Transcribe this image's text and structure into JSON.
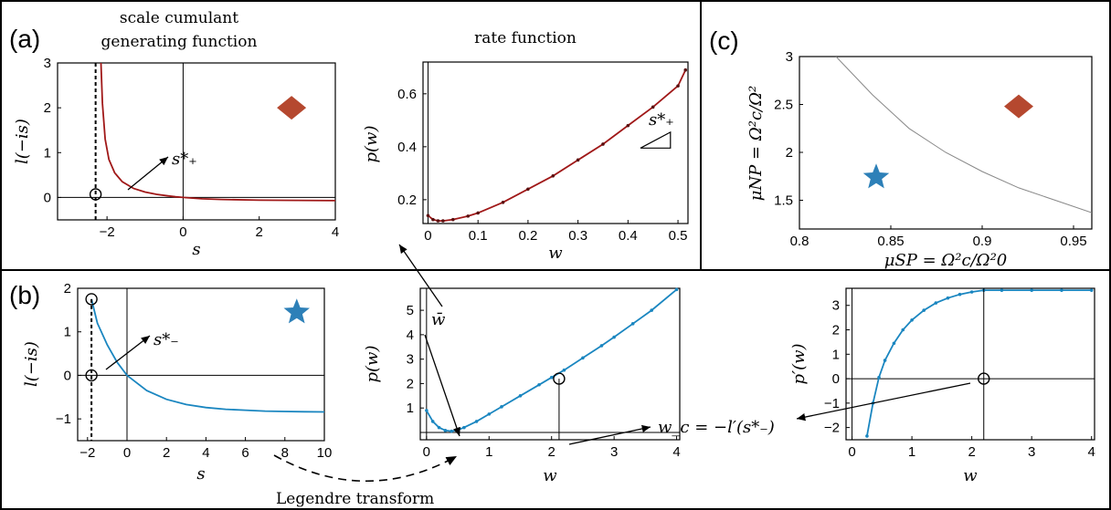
{
  "colors": {
    "red": "#A01818",
    "blue": "#1A86C0",
    "marker_red": "#B5482F",
    "marker_blue": "#2D80B8",
    "boundary": "#888888"
  },
  "panels": {
    "a": {
      "label": "(a)",
      "title_lines": [
        "scale cumulant",
        "generating function"
      ],
      "right_title": "rate function",
      "annotation": "s*₊"
    },
    "b": {
      "label": "(b)",
      "annotation": "s*₋",
      "wbar": "w̄",
      "wc_text": "w_c = −l′(s*₋)",
      "legendre": "Legendre transform"
    },
    "c": {
      "label": "(c)"
    }
  },
  "chart_data": [
    {
      "id": "a_left",
      "type": "line",
      "xlabel": "s",
      "ylabel": "l(−is)",
      "xlim": [
        -3.3,
        4
      ],
      "ylim": [
        -0.5,
        3
      ],
      "xticks": [
        -2,
        0,
        2,
        4
      ],
      "xtick_labels": [
        "−2",
        "0",
        "2",
        "4"
      ],
      "yticks": [
        0,
        1,
        2,
        3
      ],
      "ytick_labels": [
        "0",
        "1",
        "2",
        "3"
      ],
      "series": [
        {
          "color": "red",
          "x": [
            -2.16,
            -2.12,
            -2.05,
            -1.95,
            -1.8,
            -1.6,
            -1.3,
            -1.0,
            -0.7,
            -0.4,
            -0.2,
            0,
            0.5,
            1,
            2,
            3,
            4
          ],
          "y": [
            3.0,
            2.1,
            1.3,
            0.85,
            0.55,
            0.35,
            0.2,
            0.12,
            0.07,
            0.035,
            0.015,
            0,
            -0.03,
            -0.045,
            -0.06,
            -0.065,
            -0.07
          ]
        }
      ],
      "vline_dashed_x": -2.3,
      "circle_point": [
        -2.3,
        0.07
      ],
      "marker": "diamond",
      "marker_at": [
        2.85,
        2.0
      ]
    },
    {
      "id": "a_right",
      "type": "line",
      "xlabel": "w",
      "ylabel": "p(w)",
      "xlim": [
        -0.01,
        0.52
      ],
      "ylim": [
        0.11,
        0.72
      ],
      "xticks": [
        0,
        0.1,
        0.2,
        0.3,
        0.4,
        0.5
      ],
      "xtick_labels": [
        "0",
        "0.1",
        "0.2",
        "0.3",
        "0.4",
        "0.5"
      ],
      "yticks": [
        0.2,
        0.4,
        0.6
      ],
      "ytick_labels": [
        "0.2",
        "0.4",
        "0.6"
      ],
      "series": [
        {
          "color": "red",
          "x": [
            0,
            0.01,
            0.02,
            0.03,
            0.05,
            0.08,
            0.1,
            0.15,
            0.2,
            0.25,
            0.3,
            0.35,
            0.4,
            0.45,
            0.5,
            0.515
          ],
          "y": [
            0.14,
            0.125,
            0.12,
            0.12,
            0.125,
            0.138,
            0.15,
            0.19,
            0.24,
            0.29,
            0.35,
            0.41,
            0.48,
            0.55,
            0.63,
            0.69
          ]
        }
      ],
      "slope_triangle": [
        [
          0.425,
          0.395
        ],
        [
          0.485,
          0.395
        ],
        [
          0.485,
          0.455
        ]
      ]
    },
    {
      "id": "c",
      "type": "line",
      "xlabel": "μSP = Ω²c/Ω²0",
      "ylabel": "μNP = Ω²c/Ω²",
      "xlim": [
        0.8,
        0.96
      ],
      "ylim": [
        1.2,
        3.0
      ],
      "xticks": [
        0.8,
        0.85,
        0.9,
        0.95
      ],
      "xtick_labels": [
        "0.8",
        "0.85",
        "0.9",
        "0.95"
      ],
      "yticks": [
        1.5,
        2,
        2.5,
        3
      ],
      "ytick_labels": [
        "1.5",
        "2",
        "2.5",
        "3"
      ],
      "series": [
        {
          "color": "boundary",
          "x": [
            0.82,
            0.84,
            0.86,
            0.88,
            0.9,
            0.92,
            0.94,
            0.96
          ],
          "y": [
            3.0,
            2.6,
            2.25,
            2.0,
            1.8,
            1.63,
            1.5,
            1.37
          ]
        }
      ],
      "markers": [
        {
          "shape": "diamond",
          "at": [
            0.92,
            2.48
          ]
        },
        {
          "shape": "star",
          "at": [
            0.842,
            1.74
          ]
        }
      ]
    },
    {
      "id": "b_left",
      "type": "line",
      "xlabel": "s",
      "ylabel": "l(−is)",
      "xlim": [
        -2.5,
        10
      ],
      "ylim": [
        -1.5,
        2
      ],
      "xticks": [
        -2,
        0,
        2,
        4,
        6,
        8,
        10
      ],
      "xtick_labels": [
        "−2",
        "0",
        "2",
        "4",
        "6",
        "8",
        "10"
      ],
      "yticks": [
        -1,
        0,
        1,
        2
      ],
      "ytick_labels": [
        "−1",
        "0",
        "1",
        "2"
      ],
      "series": [
        {
          "color": "blue",
          "x": [
            -1.8,
            -1.5,
            -1.0,
            -0.5,
            0,
            1,
            2,
            3,
            4,
            5,
            6,
            7,
            8,
            9,
            10
          ],
          "y": [
            1.75,
            1.2,
            0.7,
            0.3,
            0,
            -0.35,
            -0.55,
            -0.67,
            -0.74,
            -0.78,
            -0.8,
            -0.82,
            -0.83,
            -0.835,
            -0.84
          ]
        }
      ],
      "vline_dashed_x": -1.8,
      "circle_points": [
        [
          -1.8,
          1.75
        ],
        [
          -1.8,
          0
        ]
      ],
      "marker": "star",
      "marker_at": [
        8.6,
        1.45
      ]
    },
    {
      "id": "b_mid",
      "type": "line",
      "xlabel": "w",
      "ylabel": "p(w)",
      "xlim": [
        -0.1,
        4.05
      ],
      "ylim": [
        -0.3,
        5.9
      ],
      "xticks": [
        0,
        1,
        2,
        3,
        4
      ],
      "xtick_labels": [
        "0",
        "1",
        "2",
        "3",
        "4"
      ],
      "yticks": [
        1,
        2,
        3,
        4,
        5
      ],
      "ytick_labels": [
        "1",
        "2",
        "3",
        "4",
        "5"
      ],
      "series": [
        {
          "color": "blue",
          "x": [
            0,
            0.1,
            0.2,
            0.3,
            0.4,
            0.5,
            0.6,
            0.8,
            1.0,
            1.2,
            1.5,
            1.8,
            2.0,
            2.2,
            2.5,
            2.8,
            3.0,
            3.3,
            3.6,
            4.0
          ],
          "y": [
            0.9,
            0.45,
            0.2,
            0.08,
            0.05,
            0.1,
            0.2,
            0.45,
            0.75,
            1.05,
            1.5,
            1.95,
            2.25,
            2.55,
            3.05,
            3.55,
            3.9,
            4.45,
            5.0,
            5.85
          ]
        }
      ],
      "vline_x": 2.12,
      "circle_point": [
        2.12,
        2.2
      ]
    },
    {
      "id": "b_right",
      "type": "line",
      "xlabel": "w",
      "ylabel": "p′(w)",
      "xlim": [
        -0.1,
        4.05
      ],
      "ylim": [
        -2.5,
        3.7
      ],
      "xticks": [
        0,
        1,
        2,
        3,
        4
      ],
      "xtick_labels": [
        "0",
        "1",
        "2",
        "3",
        "4"
      ],
      "yticks": [
        -2,
        -1,
        0,
        1,
        2,
        3
      ],
      "ytick_labels": [
        "−2",
        "−1",
        "0",
        "1",
        "2",
        "3"
      ],
      "series": [
        {
          "color": "blue",
          "x": [
            0.25,
            0.35,
            0.45,
            0.55,
            0.7,
            0.85,
            1.0,
            1.2,
            1.4,
            1.6,
            1.8,
            2.0,
            2.2,
            2.5,
            3.0,
            3.5,
            4.0
          ],
          "y": [
            -2.35,
            -1.0,
            0.05,
            0.75,
            1.45,
            2.0,
            2.4,
            2.8,
            3.1,
            3.3,
            3.45,
            3.55,
            3.62,
            3.62,
            3.62,
            3.62,
            3.62
          ]
        }
      ],
      "vline_x": 2.2,
      "circle_point": [
        2.2,
        0.0
      ]
    }
  ]
}
